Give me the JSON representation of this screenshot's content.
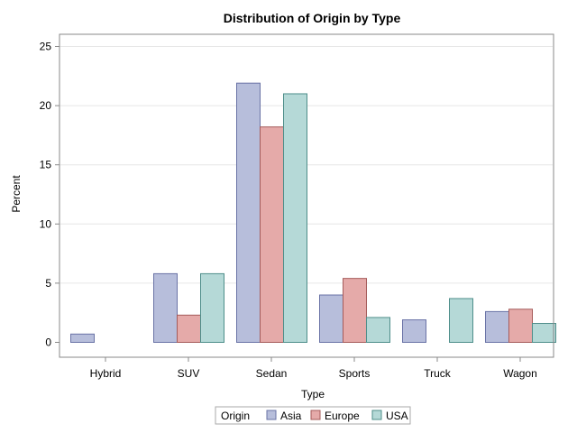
{
  "chart_data": {
    "type": "bar",
    "title": "Distribution of Origin by Type",
    "xlabel": "Type",
    "ylabel": "Percent",
    "ylim": [
      0,
      25
    ],
    "yticks": [
      0,
      5,
      10,
      15,
      20,
      25
    ],
    "grid": "horizontal",
    "categories": [
      "Hybrid",
      "SUV",
      "Sedan",
      "Sports",
      "Truck",
      "Wagon"
    ],
    "series": [
      {
        "name": "Asia",
        "values": [
          0.7,
          5.8,
          21.9,
          4.0,
          1.9,
          2.6
        ],
        "fill": "#b7bedb",
        "stroke": "#6a73a6"
      },
      {
        "name": "Europe",
        "values": [
          0.0,
          2.3,
          18.2,
          5.4,
          0.0,
          2.8
        ],
        "fill": "#e5aaa9",
        "stroke": "#a55b5a"
      },
      {
        "name": "USA",
        "values": [
          0.0,
          5.8,
          21.0,
          2.1,
          3.7,
          1.6
        ],
        "fill": "#b5d9d7",
        "stroke": "#4e8e8a"
      }
    ],
    "legend": {
      "title": "Origin",
      "placement": "bottom"
    }
  },
  "colors": {
    "axis": "#888888",
    "grid": "#e6e6e6"
  }
}
